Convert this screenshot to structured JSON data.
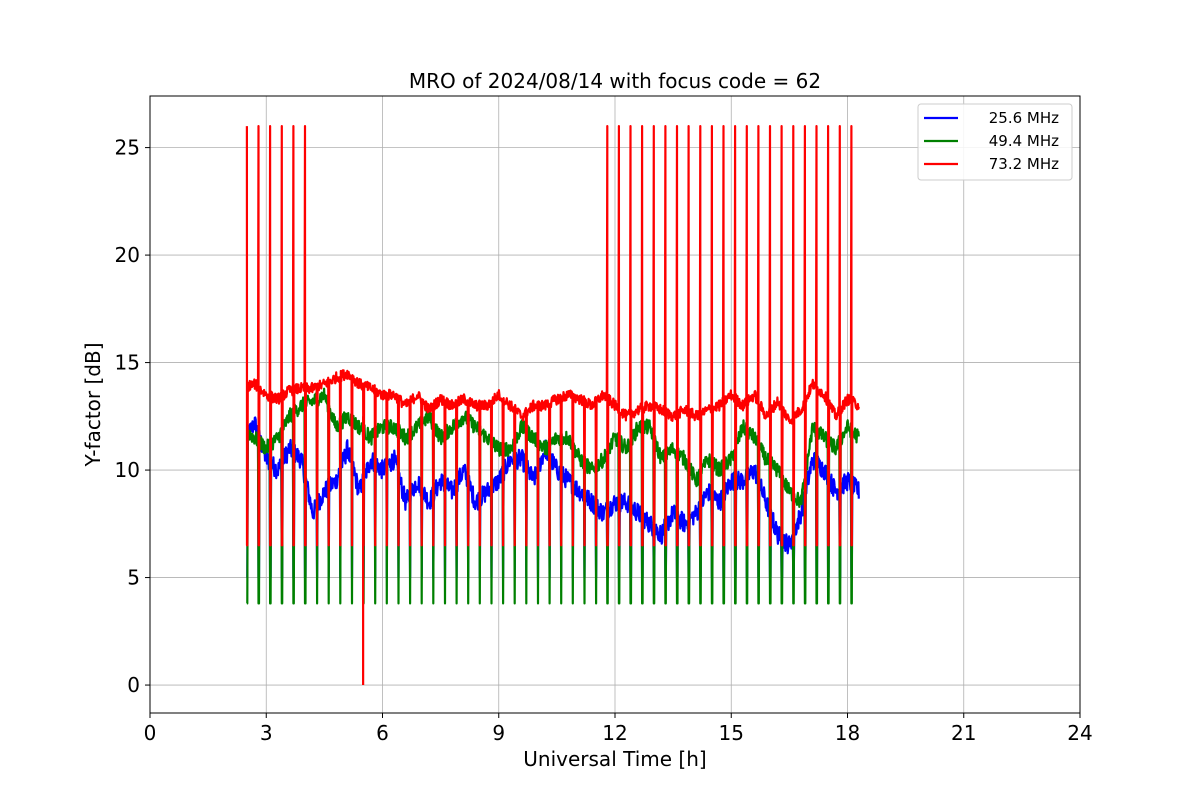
{
  "chart_data": {
    "type": "line",
    "title": "MRO of 2024/08/14 with focus code = 62",
    "xlabel": "Universal Time [h]",
    "ylabel": "Y-factor [dB]",
    "xlim": [
      0,
      24
    ],
    "ylim": [
      -1.3,
      27.4
    ],
    "x_ticks": [
      0,
      3,
      6,
      9,
      12,
      15,
      18,
      21,
      24
    ],
    "y_ticks": [
      0,
      5,
      10,
      15,
      20,
      25
    ],
    "grid": true,
    "legend_position": "top-right",
    "calibration": {
      "start_h": 2.5,
      "end_h": 18.3,
      "period_h": 0.3,
      "peak_red_db": 26.0,
      "dip_red_db": 6.5,
      "dip_green_db": 3.8,
      "dip_blue_db": 5.0
    },
    "series": [
      {
        "name": "25.6 MHz",
        "color": "#0000ff",
        "x": [
          2.5,
          2.7,
          3.0,
          3.3,
          3.6,
          3.9,
          4.2,
          4.5,
          4.8,
          5.1,
          5.4,
          5.7,
          6.0,
          6.3,
          6.6,
          6.9,
          7.2,
          7.5,
          7.8,
          8.1,
          8.4,
          8.7,
          9.0,
          9.3,
          9.6,
          9.9,
          10.2,
          10.5,
          10.8,
          11.1,
          11.4,
          11.7,
          12.0,
          12.3,
          12.6,
          12.9,
          13.2,
          13.5,
          13.8,
          14.1,
          14.4,
          14.7,
          15.0,
          15.3,
          15.6,
          15.9,
          16.2,
          16.5,
          16.8,
          17.1,
          17.4,
          17.7,
          18.0,
          18.3
        ],
        "y": [
          11.5,
          12.2,
          10.5,
          10.0,
          11.0,
          10.5,
          8.0,
          9.0,
          9.5,
          11.0,
          9.0,
          10.5,
          10.0,
          10.5,
          8.5,
          9.5,
          8.5,
          9.5,
          9.0,
          10.0,
          8.5,
          9.0,
          9.5,
          10.5,
          10.5,
          9.5,
          11.0,
          10.0,
          9.5,
          9.0,
          8.5,
          8.0,
          8.5,
          8.5,
          8.0,
          7.5,
          7.0,
          8.0,
          7.5,
          8.0,
          9.0,
          8.5,
          9.5,
          9.5,
          10.0,
          8.5,
          7.0,
          6.5,
          8.0,
          10.5,
          10.0,
          9.0,
          9.5,
          9.0
        ]
      },
      {
        "name": "49.4 MHz",
        "color": "#008000",
        "x": [
          2.5,
          2.7,
          3.0,
          3.3,
          3.6,
          3.9,
          4.2,
          4.5,
          4.8,
          5.1,
          5.4,
          5.7,
          6.0,
          6.3,
          6.6,
          6.9,
          7.2,
          7.5,
          7.8,
          8.1,
          8.4,
          8.7,
          9.0,
          9.3,
          9.6,
          9.9,
          10.2,
          10.5,
          10.8,
          11.1,
          11.4,
          11.7,
          12.0,
          12.3,
          12.6,
          12.9,
          13.2,
          13.5,
          13.8,
          14.1,
          14.4,
          14.7,
          15.0,
          15.3,
          15.6,
          15.9,
          16.2,
          16.5,
          16.8,
          17.1,
          17.4,
          17.7,
          18.0,
          18.3
        ],
        "y": [
          11.8,
          11.5,
          11.0,
          11.5,
          12.5,
          13.0,
          13.2,
          13.5,
          12.0,
          12.5,
          12.0,
          11.5,
          12.0,
          12.0,
          11.5,
          12.0,
          12.5,
          11.5,
          12.0,
          12.5,
          12.0,
          11.5,
          11.0,
          11.0,
          12.0,
          11.5,
          11.0,
          11.5,
          11.5,
          10.5,
          10.0,
          10.5,
          11.5,
          11.0,
          12.0,
          12.0,
          10.5,
          11.0,
          10.5,
          9.5,
          10.5,
          10.0,
          10.5,
          12.0,
          11.5,
          10.5,
          10.0,
          9.0,
          8.5,
          12.0,
          11.5,
          11.0,
          12.0,
          11.5
        ]
      },
      {
        "name": "73.2 MHz",
        "color": "#ff0000",
        "x": [
          2.5,
          2.7,
          3.0,
          3.3,
          3.6,
          3.9,
          4.2,
          4.5,
          4.8,
          5.1,
          5.4,
          5.7,
          6.0,
          6.3,
          6.6,
          6.9,
          7.2,
          7.5,
          7.8,
          8.1,
          8.4,
          8.7,
          9.0,
          9.3,
          9.6,
          9.9,
          10.2,
          10.5,
          10.8,
          11.1,
          11.4,
          11.7,
          12.0,
          12.3,
          12.6,
          12.9,
          13.2,
          13.5,
          13.8,
          14.1,
          14.4,
          14.7,
          15.0,
          15.3,
          15.6,
          15.9,
          16.2,
          16.5,
          16.8,
          17.1,
          17.4,
          17.7,
          18.0,
          18.3
        ],
        "y": [
          13.9,
          14.0,
          13.5,
          13.3,
          13.7,
          13.8,
          13.8,
          14.0,
          14.3,
          14.5,
          14.0,
          13.8,
          13.5,
          13.5,
          13.0,
          13.5,
          12.8,
          13.3,
          13.0,
          13.3,
          13.0,
          13.0,
          13.5,
          13.0,
          12.5,
          13.0,
          13.0,
          13.3,
          13.5,
          13.3,
          13.0,
          13.5,
          13.0,
          12.5,
          12.8,
          13.0,
          12.8,
          12.5,
          12.8,
          12.5,
          12.8,
          13.0,
          13.5,
          13.0,
          13.5,
          12.5,
          13.2,
          12.3,
          12.8,
          14.0,
          13.5,
          12.5,
          13.3,
          13.0
        ]
      }
    ],
    "annotations": [
      {
        "series": "73.2 MHz",
        "x": 5.5,
        "y": 0,
        "note": "isolated drop to 0 dB"
      }
    ]
  }
}
